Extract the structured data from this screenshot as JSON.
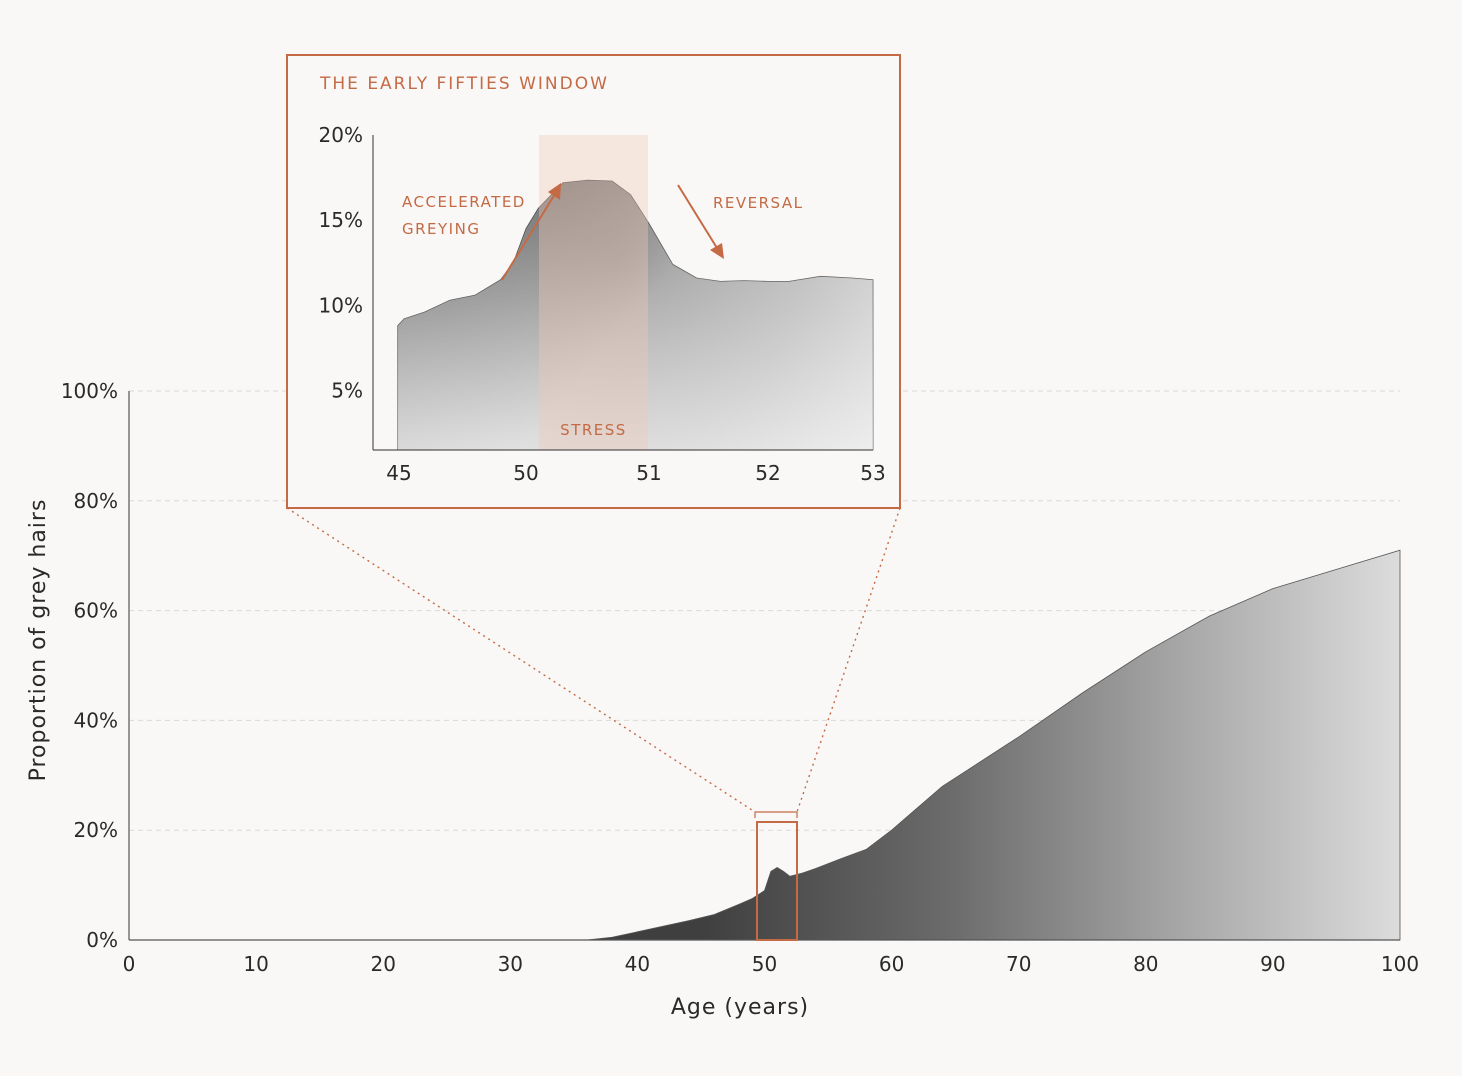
{
  "chart_data": [
    {
      "type": "area",
      "xlabel": "Age (years)",
      "ylabel": "Proportion of grey hairs",
      "xlim": [
        0,
        100
      ],
      "ylim": [
        0,
        100
      ],
      "xticks": [
        "0",
        "10",
        "20",
        "30",
        "40",
        "50",
        "60",
        "70",
        "80",
        "90",
        "100"
      ],
      "yticks": [
        "0%",
        "20%",
        "40%",
        "60%",
        "80%",
        "100%"
      ],
      "grid": "horizontal dashed",
      "fill": "grey gradient",
      "x": [
        0,
        30,
        36,
        38,
        40,
        42,
        44,
        46,
        48,
        49,
        50,
        50.5,
        51,
        51.5,
        52,
        53,
        54,
        56,
        58,
        60,
        62,
        64,
        66,
        70,
        75,
        80,
        85,
        90,
        95,
        100
      ],
      "y": [
        0,
        0,
        0,
        0.5,
        1.5,
        2.5,
        3.5,
        4.6,
        6.5,
        7.5,
        9,
        12.5,
        13.2,
        12.5,
        11.6,
        12.2,
        13,
        14.8,
        16.5,
        20,
        24,
        28,
        31,
        37,
        45,
        52.5,
        59,
        64,
        67.5,
        71
      ]
    },
    {
      "type": "area",
      "title": "THE EARLY FIFTIES WINDOW",
      "xticks": [
        "45",
        "50",
        "51",
        "52",
        "53"
      ],
      "yticks": [
        "5%",
        "10%",
        "15%",
        "20%"
      ],
      "ylim": [
        1.5,
        20
      ],
      "highlight_label": "STRESS",
      "highlight_range": [
        50,
        51
      ],
      "annotations": [
        "ACCELERATED",
        "GREYING",
        "REVERSAL"
      ],
      "x": [
        44.95,
        45.2,
        45.6,
        46,
        47,
        48,
        49,
        49.5,
        50,
        50.1,
        50.3,
        50.5,
        50.7,
        50.85,
        51,
        51.2,
        51.4,
        51.6,
        51.8,
        52,
        52.2,
        52.5,
        52.8,
        53
      ],
      "y": [
        8.8,
        9.2,
        9.4,
        9.6,
        10.3,
        10.6,
        11.5,
        12.5,
        14.5,
        15.7,
        17.2,
        17.35,
        17.3,
        16.5,
        14.8,
        12.4,
        11.6,
        11.4,
        11.45,
        11.4,
        11.4,
        11.7,
        11.6,
        11.5
      ]
    }
  ]
}
